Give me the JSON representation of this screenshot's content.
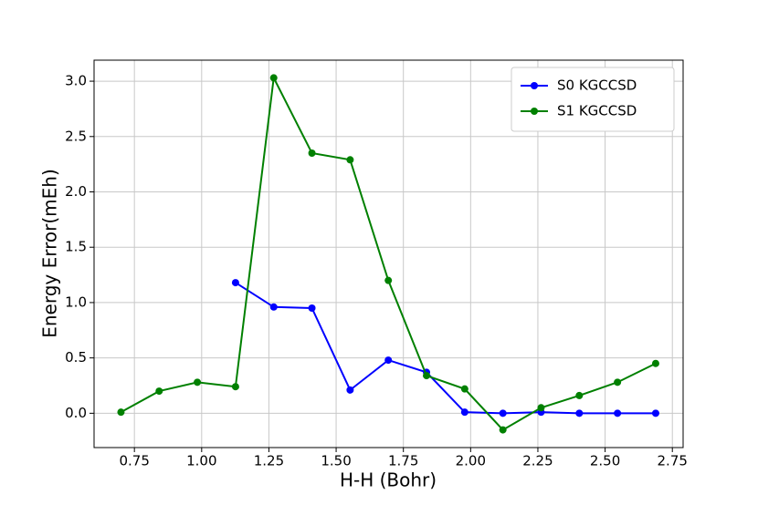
{
  "chart_data": {
    "type": "line",
    "x_label": "H-H (Bohr)",
    "y_label": "Energy Error(mEh)",
    "x": [
      0.7,
      0.842,
      0.984,
      1.126,
      1.268,
      1.41,
      1.552,
      1.694,
      1.836,
      1.978,
      2.12,
      2.262,
      2.404,
      2.546,
      2.688
    ],
    "series": [
      {
        "name": "S0 KGCCSD",
        "color": "#0000ff",
        "values": [
          null,
          null,
          null,
          1.18,
          0.96,
          0.95,
          0.21,
          0.48,
          0.37,
          0.01,
          0.0,
          0.01,
          0.0,
          0.0,
          0.0
        ]
      },
      {
        "name": "S1 KGCCSD",
        "color": "#008000",
        "values": [
          0.01,
          0.2,
          0.28,
          0.24,
          3.03,
          2.35,
          2.29,
          1.2,
          0.34,
          0.22,
          -0.15,
          0.05,
          0.16,
          0.28,
          0.45
        ]
      }
    ],
    "xlim": [
      0.6,
      2.79
    ],
    "ylim": [
      -0.31,
      3.19
    ],
    "xticks": [
      0.75,
      {
        "value": 1,
        "label": "1.00"
      },
      1.25,
      {
        "value": 1.5,
        "label": "1.50"
      },
      1.75,
      {
        "value": 2,
        "label": "2.00"
      },
      2.25,
      {
        "value": 2.5,
        "label": "2.50"
      },
      2.75
    ],
    "yticks": [
      {
        "value": 0,
        "label": "0.0"
      },
      0.5,
      {
        "value": 1,
        "label": "1.0"
      },
      1.5,
      {
        "value": 2,
        "label": "2.0"
      },
      2.5,
      {
        "value": 3,
        "label": "3.0"
      }
    ],
    "grid": true,
    "legend": "upper-right"
  }
}
